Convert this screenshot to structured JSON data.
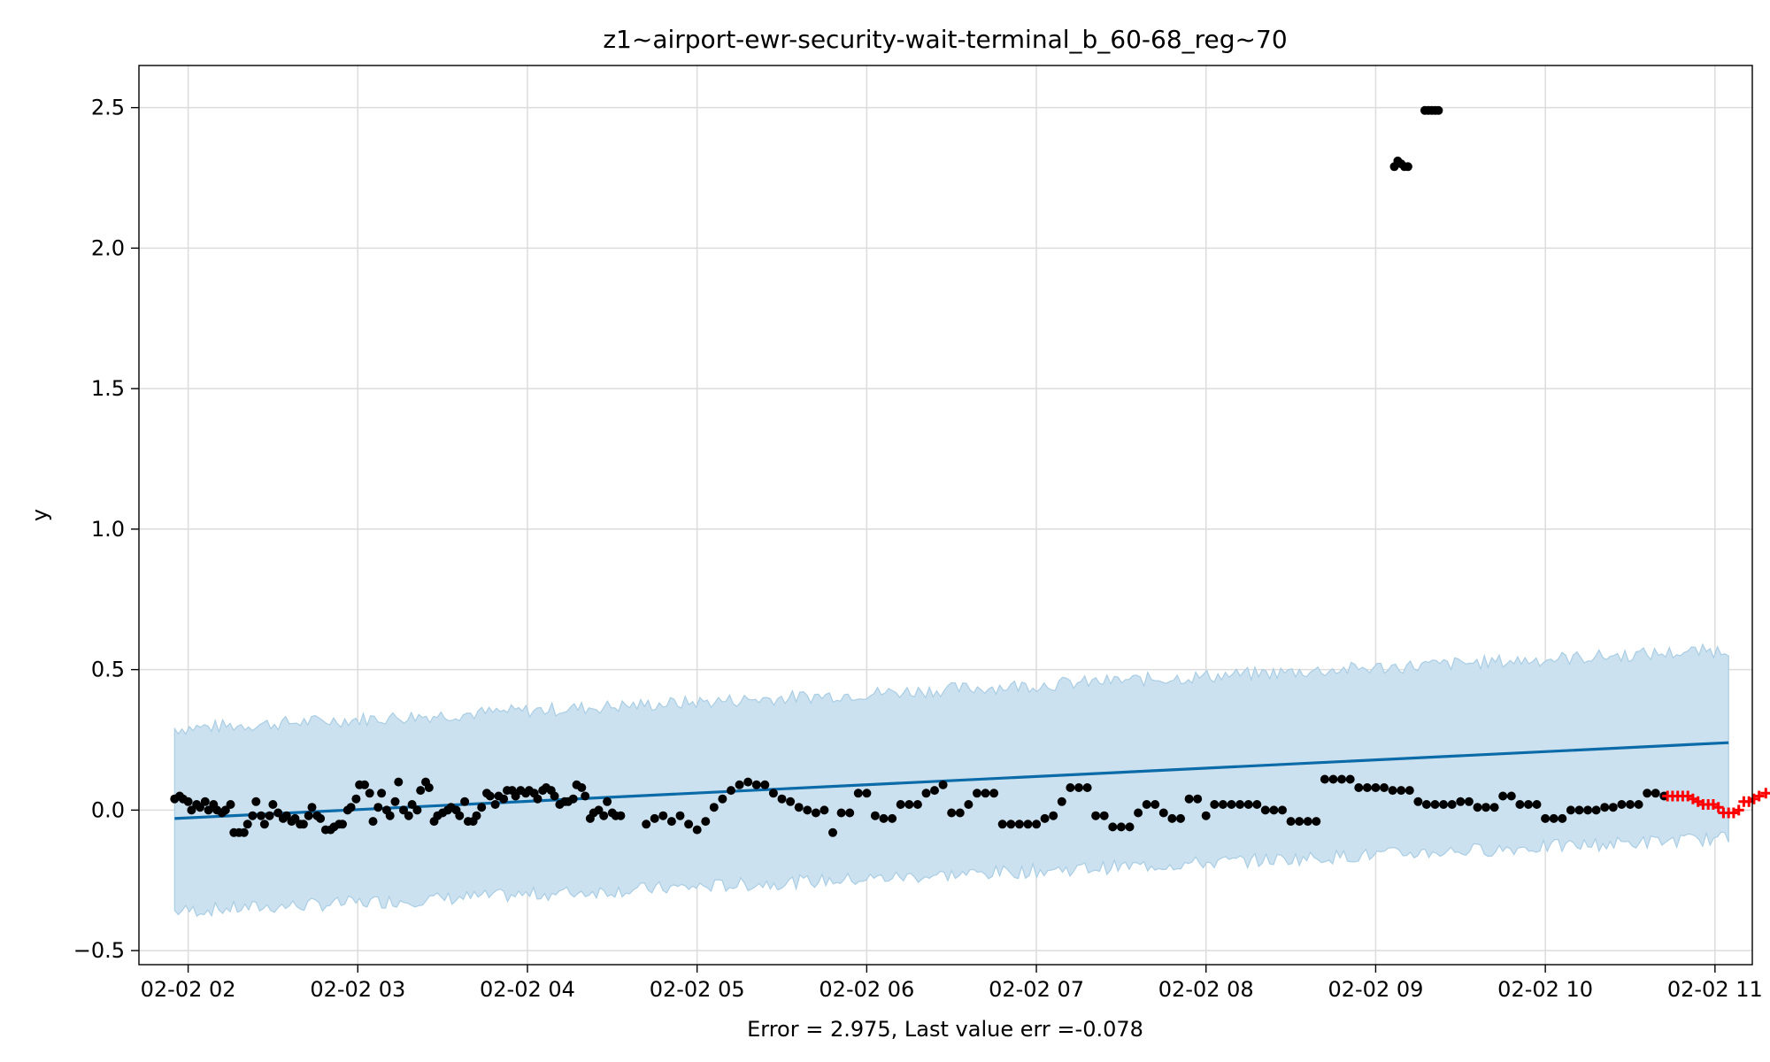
{
  "chart_data": {
    "type": "scatter",
    "title": "z1~airport-ewr-security-wait-terminal_b_60-68_reg~70",
    "xlabel": "Error = 2.975, Last value err =-0.078",
    "ylabel": "y",
    "x_range_hours": [
      1.71,
      11.22
    ],
    "ylim": [
      -0.55,
      2.65
    ],
    "grid": true,
    "x_ticks": [
      {
        "label": "02-02 02",
        "hour": 2
      },
      {
        "label": "02-02 03",
        "hour": 3
      },
      {
        "label": "02-02 04",
        "hour": 4
      },
      {
        "label": "02-02 05",
        "hour": 5
      },
      {
        "label": "02-02 06",
        "hour": 6
      },
      {
        "label": "02-02 07",
        "hour": 7
      },
      {
        "label": "02-02 08",
        "hour": 8
      },
      {
        "label": "02-02 09",
        "hour": 9
      },
      {
        "label": "02-02 10",
        "hour": 10
      },
      {
        "label": "02-02 11",
        "hour": 11
      }
    ],
    "y_ticks": [
      {
        "label": "−0.5",
        "value": -0.5
      },
      {
        "label": "0.0",
        "value": 0.0
      },
      {
        "label": "0.5",
        "value": 0.5
      },
      {
        "label": "1.0",
        "value": 1.0
      },
      {
        "label": "1.5",
        "value": 1.5
      },
      {
        "label": "2.0",
        "value": 2.0
      },
      {
        "label": "2.5",
        "value": 2.5
      }
    ],
    "trend": {
      "start": [
        1.92,
        -0.03
      ],
      "end": [
        11.08,
        0.24
      ],
      "color": "#0b6aa8"
    },
    "band": {
      "lower_start": -0.36,
      "lower_end": -0.1,
      "upper_start": 0.29,
      "upper_end": 0.57,
      "color": "#cce1ef",
      "edge_color": "#a9cde4"
    },
    "observed": {
      "color": "#000000",
      "points": [
        [
          1.92,
          0.04
        ],
        [
          1.95,
          0.05
        ],
        [
          1.97,
          0.04
        ],
        [
          2.0,
          0.03
        ],
        [
          2.02,
          0.0
        ],
        [
          2.05,
          0.02
        ],
        [
          2.07,
          0.01
        ],
        [
          2.1,
          0.03
        ],
        [
          2.12,
          0.0
        ],
        [
          2.15,
          0.02
        ],
        [
          2.17,
          0.0
        ],
        [
          2.2,
          -0.01
        ],
        [
          2.22,
          0.0
        ],
        [
          2.25,
          0.02
        ],
        [
          2.27,
          -0.08
        ],
        [
          2.3,
          -0.08
        ],
        [
          2.33,
          -0.08
        ],
        [
          2.35,
          -0.05
        ],
        [
          2.38,
          -0.02
        ],
        [
          2.4,
          0.03
        ],
        [
          2.43,
          -0.02
        ],
        [
          2.45,
          -0.05
        ],
        [
          2.48,
          -0.02
        ],
        [
          2.5,
          0.02
        ],
        [
          2.53,
          -0.01
        ],
        [
          2.56,
          -0.03
        ],
        [
          2.58,
          -0.02
        ],
        [
          2.61,
          -0.04
        ],
        [
          2.63,
          -0.03
        ],
        [
          2.66,
          -0.05
        ],
        [
          2.68,
          -0.05
        ],
        [
          2.71,
          -0.02
        ],
        [
          2.73,
          0.01
        ],
        [
          2.76,
          -0.02
        ],
        [
          2.78,
          -0.03
        ],
        [
          2.81,
          -0.07
        ],
        [
          2.84,
          -0.07
        ],
        [
          2.86,
          -0.06
        ],
        [
          2.89,
          -0.05
        ],
        [
          2.91,
          -0.05
        ],
        [
          2.94,
          0.0
        ],
        [
          2.96,
          0.01
        ],
        [
          2.99,
          0.04
        ],
        [
          3.01,
          0.09
        ],
        [
          3.04,
          0.09
        ],
        [
          3.07,
          0.06
        ],
        [
          3.09,
          -0.04
        ],
        [
          3.12,
          0.01
        ],
        [
          3.14,
          0.06
        ],
        [
          3.17,
          0.0
        ],
        [
          3.19,
          -0.02
        ],
        [
          3.22,
          0.03
        ],
        [
          3.24,
          0.1
        ],
        [
          3.27,
          0.0
        ],
        [
          3.3,
          -0.02
        ],
        [
          3.32,
          0.02
        ],
        [
          3.35,
          0.0
        ],
        [
          3.37,
          0.07
        ],
        [
          3.4,
          0.1
        ],
        [
          3.42,
          0.08
        ],
        [
          3.45,
          -0.04
        ],
        [
          3.47,
          -0.02
        ],
        [
          3.5,
          -0.01
        ],
        [
          3.53,
          0.0
        ],
        [
          3.55,
          0.01
        ],
        [
          3.58,
          0.0
        ],
        [
          3.6,
          -0.02
        ],
        [
          3.63,
          0.03
        ],
        [
          3.65,
          -0.04
        ],
        [
          3.68,
          -0.04
        ],
        [
          3.7,
          -0.02
        ],
        [
          3.73,
          0.01
        ],
        [
          3.76,
          0.06
        ],
        [
          3.78,
          0.05
        ],
        [
          3.81,
          0.02
        ],
        [
          3.83,
          0.05
        ],
        [
          3.86,
          0.04
        ],
        [
          3.88,
          0.07
        ],
        [
          3.91,
          0.07
        ],
        [
          3.93,
          0.05
        ],
        [
          3.96,
          0.07
        ],
        [
          3.99,
          0.06
        ],
        [
          4.01,
          0.07
        ],
        [
          4.04,
          0.06
        ],
        [
          4.06,
          0.04
        ],
        [
          4.09,
          0.07
        ],
        [
          4.11,
          0.08
        ],
        [
          4.14,
          0.07
        ],
        [
          4.16,
          0.05
        ],
        [
          4.19,
          0.02
        ],
        [
          4.22,
          0.03
        ],
        [
          4.24,
          0.03
        ],
        [
          4.27,
          0.04
        ],
        [
          4.29,
          0.09
        ],
        [
          4.32,
          0.08
        ],
        [
          4.34,
          0.05
        ],
        [
          4.37,
          -0.03
        ],
        [
          4.39,
          -0.01
        ],
        [
          4.42,
          0.0
        ],
        [
          4.45,
          -0.02
        ],
        [
          4.47,
          0.03
        ],
        [
          4.5,
          -0.01
        ],
        [
          4.52,
          -0.02
        ],
        [
          4.55,
          -0.02
        ],
        [
          4.7,
          -0.05
        ],
        [
          4.75,
          -0.03
        ],
        [
          4.8,
          -0.02
        ],
        [
          4.85,
          -0.04
        ],
        [
          4.9,
          -0.02
        ],
        [
          4.95,
          -0.05
        ],
        [
          5.0,
          -0.07
        ],
        [
          5.05,
          -0.04
        ],
        [
          5.1,
          0.01
        ],
        [
          5.15,
          0.04
        ],
        [
          5.2,
          0.07
        ],
        [
          5.25,
          0.09
        ],
        [
          5.3,
          0.1
        ],
        [
          5.35,
          0.09
        ],
        [
          5.4,
          0.09
        ],
        [
          5.45,
          0.06
        ],
        [
          5.5,
          0.04
        ],
        [
          5.55,
          0.03
        ],
        [
          5.6,
          0.01
        ],
        [
          5.65,
          0.0
        ],
        [
          5.7,
          -0.01
        ],
        [
          5.75,
          0.0
        ],
        [
          5.8,
          -0.08
        ],
        [
          5.85,
          -0.01
        ],
        [
          5.9,
          -0.01
        ],
        [
          5.95,
          0.06
        ],
        [
          6.0,
          0.06
        ],
        [
          6.05,
          -0.02
        ],
        [
          6.1,
          -0.03
        ],
        [
          6.15,
          -0.03
        ],
        [
          6.2,
          0.02
        ],
        [
          6.25,
          0.02
        ],
        [
          6.3,
          0.02
        ],
        [
          6.35,
          0.06
        ],
        [
          6.4,
          0.07
        ],
        [
          6.45,
          0.09
        ],
        [
          6.5,
          -0.01
        ],
        [
          6.55,
          -0.01
        ],
        [
          6.6,
          0.02
        ],
        [
          6.65,
          0.06
        ],
        [
          6.7,
          0.06
        ],
        [
          6.75,
          0.06
        ],
        [
          6.8,
          -0.05
        ],
        [
          6.85,
          -0.05
        ],
        [
          6.9,
          -0.05
        ],
        [
          6.95,
          -0.05
        ],
        [
          7.0,
          -0.05
        ],
        [
          7.05,
          -0.03
        ],
        [
          7.1,
          -0.02
        ],
        [
          7.15,
          0.03
        ],
        [
          7.2,
          0.08
        ],
        [
          7.25,
          0.08
        ],
        [
          7.3,
          0.08
        ],
        [
          7.35,
          -0.02
        ],
        [
          7.4,
          -0.02
        ],
        [
          7.45,
          -0.06
        ],
        [
          7.5,
          -0.06
        ],
        [
          7.55,
          -0.06
        ],
        [
          7.6,
          -0.01
        ],
        [
          7.65,
          0.02
        ],
        [
          7.7,
          0.02
        ],
        [
          7.75,
          -0.01
        ],
        [
          7.8,
          -0.03
        ],
        [
          7.85,
          -0.03
        ],
        [
          7.9,
          0.04
        ],
        [
          7.95,
          0.04
        ],
        [
          8.0,
          -0.02
        ],
        [
          8.05,
          0.02
        ],
        [
          8.1,
          0.02
        ],
        [
          8.15,
          0.02
        ],
        [
          8.2,
          0.02
        ],
        [
          8.25,
          0.02
        ],
        [
          8.3,
          0.02
        ],
        [
          8.35,
          0.0
        ],
        [
          8.4,
          0.0
        ],
        [
          8.45,
          0.0
        ],
        [
          8.5,
          -0.04
        ],
        [
          8.55,
          -0.04
        ],
        [
          8.6,
          -0.04
        ],
        [
          8.65,
          -0.04
        ],
        [
          8.7,
          0.11
        ],
        [
          8.75,
          0.11
        ],
        [
          8.8,
          0.11
        ],
        [
          8.85,
          0.11
        ],
        [
          8.9,
          0.08
        ],
        [
          8.95,
          0.08
        ],
        [
          9.0,
          0.08
        ],
        [
          9.05,
          0.08
        ],
        [
          9.1,
          0.07
        ],
        [
          9.15,
          0.07
        ],
        [
          9.2,
          0.07
        ],
        [
          9.25,
          0.03
        ],
        [
          9.3,
          0.02
        ],
        [
          9.35,
          0.02
        ],
        [
          9.4,
          0.02
        ],
        [
          9.45,
          0.02
        ],
        [
          9.5,
          0.03
        ],
        [
          9.55,
          0.03
        ],
        [
          9.6,
          0.01
        ],
        [
          9.65,
          0.01
        ],
        [
          9.7,
          0.01
        ],
        [
          9.75,
          0.05
        ],
        [
          9.8,
          0.05
        ],
        [
          9.85,
          0.02
        ],
        [
          9.9,
          0.02
        ],
        [
          9.95,
          0.02
        ],
        [
          10.0,
          -0.03
        ],
        [
          10.05,
          -0.03
        ],
        [
          10.1,
          -0.03
        ],
        [
          10.15,
          0.0
        ],
        [
          10.2,
          0.0
        ],
        [
          10.25,
          0.0
        ],
        [
          10.3,
          0.0
        ],
        [
          10.35,
          0.01
        ],
        [
          10.4,
          0.01
        ],
        [
          10.45,
          0.02
        ],
        [
          10.5,
          0.02
        ],
        [
          10.55,
          0.02
        ],
        [
          10.6,
          0.06
        ],
        [
          10.65,
          0.06
        ],
        [
          10.7,
          0.05
        ],
        [
          9.11,
          2.29
        ],
        [
          9.13,
          2.31
        ],
        [
          9.15,
          2.3
        ],
        [
          9.17,
          2.29
        ],
        [
          9.19,
          2.29
        ],
        [
          9.29,
          2.49
        ],
        [
          9.31,
          2.49
        ],
        [
          9.33,
          2.49
        ],
        [
          9.35,
          2.49
        ],
        [
          9.37,
          2.49
        ]
      ]
    },
    "forecast": {
      "color": "#ff0000",
      "points": [
        [
          10.72,
          0.05
        ],
        [
          10.75,
          0.05
        ],
        [
          10.78,
          0.05
        ],
        [
          10.81,
          0.05
        ],
        [
          10.84,
          0.05
        ],
        [
          10.87,
          0.04
        ],
        [
          10.9,
          0.03
        ],
        [
          10.93,
          0.02
        ],
        [
          10.96,
          0.02
        ],
        [
          10.99,
          0.02
        ],
        [
          11.02,
          0.01
        ],
        [
          11.05,
          -0.01
        ],
        [
          11.08,
          -0.01
        ],
        [
          11.11,
          -0.01
        ],
        [
          11.14,
          0.0
        ],
        [
          11.17,
          0.03
        ],
        [
          11.2,
          0.03
        ],
        [
          11.23,
          0.04
        ],
        [
          11.26,
          0.05
        ],
        [
          11.3,
          0.06
        ]
      ]
    }
  }
}
